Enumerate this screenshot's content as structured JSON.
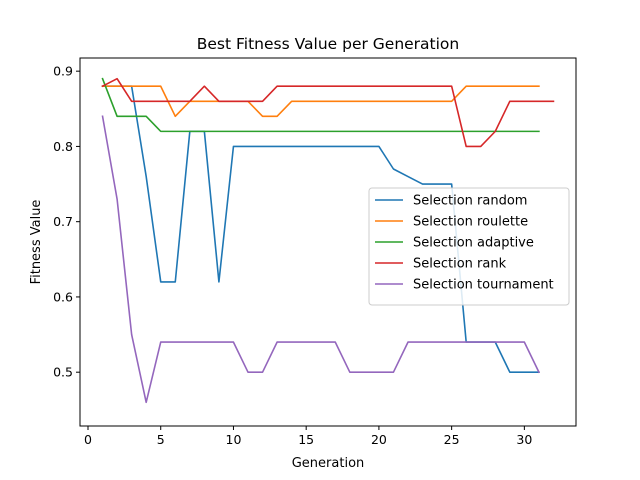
{
  "chart_data": {
    "type": "line",
    "title": "Best Fitness Value per Generation",
    "xlabel": "Generation",
    "ylabel": "Fitness Value",
    "xlim": [
      -0.55,
      33.55
    ],
    "ylim": [
      0.4285,
      0.9175
    ],
    "xticks": [
      0,
      5,
      10,
      15,
      20,
      25,
      30
    ],
    "yticks": [
      0.5,
      0.6,
      0.7,
      0.8,
      0.9
    ],
    "ytick_labels": [
      "0.5",
      "0.6",
      "0.7",
      "0.8",
      "0.9"
    ],
    "grid": false,
    "legend_position": "center-right",
    "series": [
      {
        "name": "Selection random",
        "color": "#1f77b4",
        "x": [
          1,
          2,
          3,
          4,
          5,
          6,
          7,
          8,
          9,
          10,
          11,
          12,
          13,
          14,
          15,
          16,
          17,
          18,
          19,
          20,
          21,
          22,
          23,
          24,
          25,
          26,
          27,
          28,
          29,
          30,
          31
        ],
        "y": [
          0.88,
          0.88,
          0.88,
          0.76,
          0.62,
          0.62,
          0.82,
          0.82,
          0.62,
          0.8,
          0.8,
          0.8,
          0.8,
          0.8,
          0.8,
          0.8,
          0.8,
          0.8,
          0.8,
          0.8,
          0.77,
          0.76,
          0.75,
          0.75,
          0.75,
          0.54,
          0.54,
          0.54,
          0.5,
          0.5,
          0.5
        ]
      },
      {
        "name": "Selection roulette",
        "color": "#ff7f0e",
        "x": [
          1,
          2,
          3,
          4,
          5,
          6,
          7,
          8,
          9,
          10,
          11,
          12,
          13,
          14,
          15,
          16,
          17,
          18,
          19,
          20,
          21,
          22,
          23,
          24,
          25,
          26,
          27,
          28,
          29,
          30,
          31
        ],
        "y": [
          0.88,
          0.88,
          0.88,
          0.88,
          0.88,
          0.84,
          0.86,
          0.86,
          0.86,
          0.86,
          0.86,
          0.84,
          0.84,
          0.86,
          0.86,
          0.86,
          0.86,
          0.86,
          0.86,
          0.86,
          0.86,
          0.86,
          0.86,
          0.86,
          0.86,
          0.88,
          0.88,
          0.88,
          0.88,
          0.88,
          0.88
        ]
      },
      {
        "name": "Selection adaptive",
        "color": "#2ca02c",
        "x": [
          1,
          2,
          3,
          4,
          5,
          6,
          7,
          8,
          9,
          10,
          11,
          12,
          13,
          14,
          15,
          16,
          17,
          18,
          19,
          20,
          21,
          22,
          23,
          24,
          25,
          26,
          27,
          28,
          29,
          30,
          31
        ],
        "y": [
          0.89,
          0.84,
          0.84,
          0.84,
          0.82,
          0.82,
          0.82,
          0.82,
          0.82,
          0.82,
          0.82,
          0.82,
          0.82,
          0.82,
          0.82,
          0.82,
          0.82,
          0.82,
          0.82,
          0.82,
          0.82,
          0.82,
          0.82,
          0.82,
          0.82,
          0.82,
          0.82,
          0.82,
          0.82,
          0.82,
          0.82
        ]
      },
      {
        "name": "Selection rank",
        "color": "#d62728",
        "x": [
          1,
          2,
          3,
          4,
          5,
          6,
          7,
          8,
          9,
          10,
          11,
          12,
          13,
          14,
          15,
          16,
          17,
          18,
          19,
          20,
          21,
          22,
          23,
          24,
          25,
          26,
          27,
          28,
          29,
          30,
          31,
          32
        ],
        "y": [
          0.88,
          0.89,
          0.86,
          0.86,
          0.86,
          0.86,
          0.86,
          0.88,
          0.86,
          0.86,
          0.86,
          0.86,
          0.88,
          0.88,
          0.88,
          0.88,
          0.88,
          0.88,
          0.88,
          0.88,
          0.88,
          0.88,
          0.88,
          0.88,
          0.88,
          0.8,
          0.8,
          0.82,
          0.86,
          0.86,
          0.86,
          0.86
        ]
      },
      {
        "name": "Selection tournament",
        "color": "#9467bd",
        "x": [
          1,
          2,
          3,
          4,
          5,
          6,
          7,
          8,
          9,
          10,
          11,
          12,
          13,
          14,
          15,
          16,
          17,
          18,
          19,
          20,
          21,
          22,
          23,
          24,
          25,
          26,
          27,
          28,
          29,
          30,
          31
        ],
        "y": [
          0.84,
          0.73,
          0.55,
          0.46,
          0.54,
          0.54,
          0.54,
          0.54,
          0.54,
          0.54,
          0.5,
          0.5,
          0.54,
          0.54,
          0.54,
          0.54,
          0.54,
          0.5,
          0.5,
          0.5,
          0.5,
          0.54,
          0.54,
          0.54,
          0.54,
          0.54,
          0.54,
          0.54,
          0.54,
          0.54,
          0.5
        ]
      }
    ]
  }
}
